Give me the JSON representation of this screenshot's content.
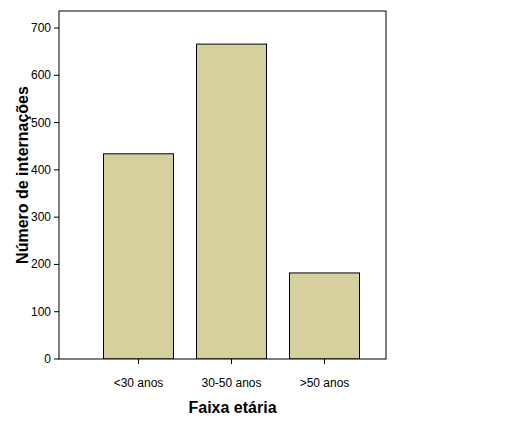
{
  "chart_data": {
    "type": "bar",
    "x_label": "Faixa etária",
    "y_label": "Número de internações",
    "categories": [
      "<30 anos",
      "30-50 anos",
      ">50 anos"
    ],
    "values": [
      434,
      666,
      182
    ],
    "color": "#d6d09e",
    "ylim": [
      0,
      736
    ],
    "yticks": [
      0,
      100,
      200,
      300,
      400,
      500,
      600,
      700
    ],
    "grid": false
  }
}
